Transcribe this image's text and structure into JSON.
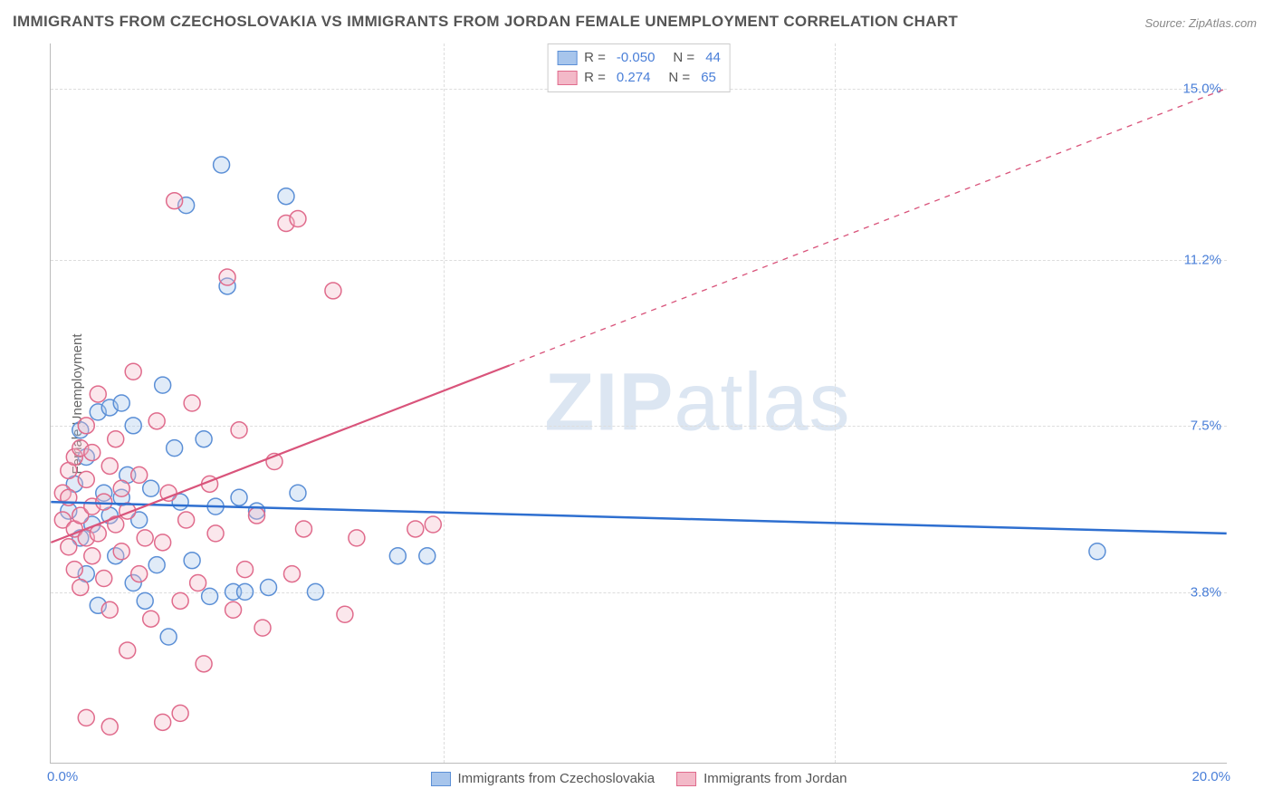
{
  "title": "IMMIGRANTS FROM CZECHOSLOVAKIA VS IMMIGRANTS FROM JORDAN FEMALE UNEMPLOYMENT CORRELATION CHART",
  "source": "Source: ZipAtlas.com",
  "yaxis_label": "Female Unemployment",
  "watermark_bold": "ZIP",
  "watermark_light": "atlas",
  "chart": {
    "type": "scatter",
    "xlim": [
      0,
      20
    ],
    "ylim": [
      0,
      16
    ],
    "x_tick_labels": [
      "0.0%",
      "20.0%"
    ],
    "y_tick_labels": [
      "3.8%",
      "7.5%",
      "11.2%",
      "15.0%"
    ],
    "y_tick_values": [
      3.8,
      7.5,
      11.2,
      15.0
    ],
    "grid_color": "#dddddd",
    "background_color": "#ffffff",
    "axis_color": "#bbbbbb",
    "tick_label_color": "#4a7fd8",
    "marker_radius": 9,
    "marker_stroke_width": 1.5,
    "marker_fill_opacity": 0.35,
    "series": [
      {
        "name": "Immigrants from Czechoslovakia",
        "color_fill": "#a7c5ec",
        "color_stroke": "#5b8fd6",
        "trend_color": "#2e6fd0",
        "trend_width": 2.5,
        "R": -0.05,
        "N": 44,
        "trend": {
          "x1": 0,
          "y1": 5.8,
          "x2": 20,
          "y2": 5.1
        },
        "points": [
          [
            0.3,
            5.6
          ],
          [
            0.4,
            6.2
          ],
          [
            0.5,
            5.0
          ],
          [
            0.5,
            7.4
          ],
          [
            0.6,
            4.2
          ],
          [
            0.6,
            6.8
          ],
          [
            0.7,
            5.3
          ],
          [
            0.8,
            7.8
          ],
          [
            0.8,
            3.5
          ],
          [
            0.9,
            6.0
          ],
          [
            1.0,
            7.9
          ],
          [
            1.0,
            5.5
          ],
          [
            1.1,
            4.6
          ],
          [
            1.2,
            8.0
          ],
          [
            1.2,
            5.9
          ],
          [
            1.3,
            6.4
          ],
          [
            1.4,
            4.0
          ],
          [
            1.4,
            7.5
          ],
          [
            1.5,
            5.4
          ],
          [
            1.6,
            3.6
          ],
          [
            1.7,
            6.1
          ],
          [
            1.8,
            4.4
          ],
          [
            1.9,
            8.4
          ],
          [
            2.0,
            2.8
          ],
          [
            2.1,
            7.0
          ],
          [
            2.2,
            5.8
          ],
          [
            2.3,
            12.4
          ],
          [
            2.4,
            4.5
          ],
          [
            2.6,
            7.2
          ],
          [
            2.7,
            3.7
          ],
          [
            2.8,
            5.7
          ],
          [
            2.9,
            13.3
          ],
          [
            3.0,
            10.6
          ],
          [
            3.1,
            3.8
          ],
          [
            3.2,
            5.9
          ],
          [
            3.3,
            3.8
          ],
          [
            3.5,
            5.6
          ],
          [
            3.7,
            3.9
          ],
          [
            4.0,
            12.6
          ],
          [
            4.2,
            6.0
          ],
          [
            4.5,
            3.8
          ],
          [
            5.9,
            4.6
          ],
          [
            6.4,
            4.6
          ],
          [
            17.8,
            4.7
          ]
        ]
      },
      {
        "name": "Immigrants from Jordan",
        "color_fill": "#f3b9c8",
        "color_stroke": "#e06b8c",
        "trend_color": "#d9547b",
        "trend_width": 2.2,
        "R": 0.274,
        "N": 65,
        "trend": {
          "x1": 0,
          "y1": 4.9,
          "x2": 20,
          "y2": 15.0
        },
        "trend_solid_until_x": 7.8,
        "trend_dash": "6,6",
        "points": [
          [
            0.2,
            5.4
          ],
          [
            0.2,
            6.0
          ],
          [
            0.3,
            4.8
          ],
          [
            0.3,
            5.9
          ],
          [
            0.3,
            6.5
          ],
          [
            0.4,
            5.2
          ],
          [
            0.4,
            6.8
          ],
          [
            0.4,
            4.3
          ],
          [
            0.5,
            7.0
          ],
          [
            0.5,
            5.5
          ],
          [
            0.5,
            3.9
          ],
          [
            0.6,
            6.3
          ],
          [
            0.6,
            5.0
          ],
          [
            0.6,
            7.5
          ],
          [
            0.7,
            4.6
          ],
          [
            0.7,
            5.7
          ],
          [
            0.7,
            6.9
          ],
          [
            0.8,
            5.1
          ],
          [
            0.8,
            8.2
          ],
          [
            0.9,
            4.1
          ],
          [
            0.9,
            5.8
          ],
          [
            1.0,
            6.6
          ],
          [
            1.0,
            3.4
          ],
          [
            1.1,
            5.3
          ],
          [
            1.1,
            7.2
          ],
          [
            1.2,
            4.7
          ],
          [
            1.2,
            6.1
          ],
          [
            1.3,
            5.6
          ],
          [
            1.3,
            2.5
          ],
          [
            1.4,
            8.7
          ],
          [
            1.5,
            4.2
          ],
          [
            1.5,
            6.4
          ],
          [
            1.6,
            5.0
          ],
          [
            1.7,
            3.2
          ],
          [
            1.8,
            7.6
          ],
          [
            1.9,
            4.9
          ],
          [
            2.0,
            6.0
          ],
          [
            2.1,
            12.5
          ],
          [
            2.2,
            3.6
          ],
          [
            2.3,
            5.4
          ],
          [
            2.4,
            8.0
          ],
          [
            2.5,
            4.0
          ],
          [
            2.6,
            2.2
          ],
          [
            2.7,
            6.2
          ],
          [
            2.8,
            5.1
          ],
          [
            3.0,
            10.8
          ],
          [
            3.1,
            3.4
          ],
          [
            3.2,
            7.4
          ],
          [
            3.3,
            4.3
          ],
          [
            3.5,
            5.5
          ],
          [
            3.6,
            3.0
          ],
          [
            3.8,
            6.7
          ],
          [
            4.0,
            12.0
          ],
          [
            4.1,
            4.2
          ],
          [
            4.2,
            12.1
          ],
          [
            4.3,
            5.2
          ],
          [
            4.8,
            10.5
          ],
          [
            5.0,
            3.3
          ],
          [
            5.2,
            5.0
          ],
          [
            6.2,
            5.2
          ],
          [
            6.5,
            5.3
          ],
          [
            0.6,
            1.0
          ],
          [
            1.0,
            0.8
          ],
          [
            1.9,
            0.9
          ],
          [
            2.2,
            1.1
          ]
        ]
      }
    ]
  },
  "legend_top": {
    "rows": [
      {
        "swatch_fill": "#a7c5ec",
        "swatch_stroke": "#5b8fd6",
        "r_label": "R =",
        "r_val": "-0.050",
        "n_label": "N =",
        "n_val": "44"
      },
      {
        "swatch_fill": "#f3b9c8",
        "swatch_stroke": "#e06b8c",
        "r_label": "R =",
        "r_val": " 0.274",
        "n_label": "N =",
        "n_val": "65"
      }
    ]
  },
  "legend_bottom": [
    {
      "swatch_fill": "#a7c5ec",
      "swatch_stroke": "#5b8fd6",
      "label": "Immigrants from Czechoslovakia"
    },
    {
      "swatch_fill": "#f3b9c8",
      "swatch_stroke": "#e06b8c",
      "label": "Immigrants from Jordan"
    }
  ]
}
